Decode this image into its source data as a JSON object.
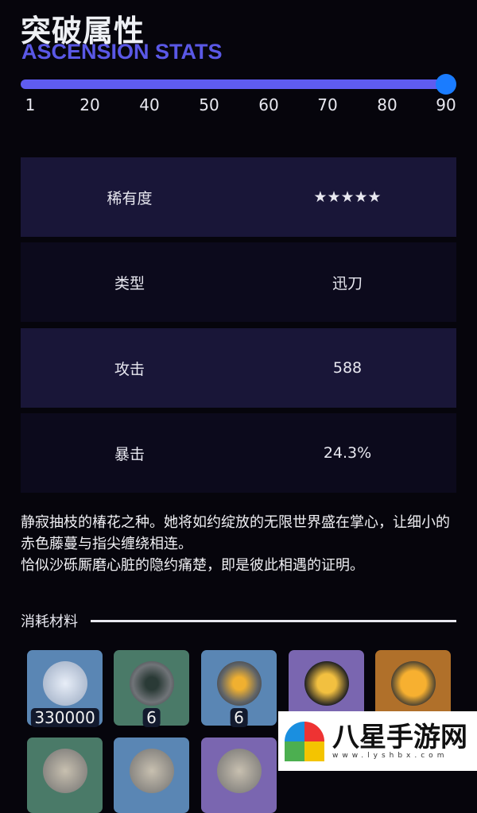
{
  "header": {
    "title": "突破属性",
    "subtitle": "ASCENSION STATS"
  },
  "level_slider": {
    "ticks": [
      "1",
      "20",
      "40",
      "50",
      "60",
      "70",
      "80",
      "90"
    ],
    "value": 90,
    "min": 1,
    "max": 90,
    "accent": "#5f5cf0",
    "thumb_color": "#1a7cff"
  },
  "stats": [
    {
      "label": "稀有度",
      "value": "★★★★★"
    },
    {
      "label": "类型",
      "value": "迅刀"
    },
    {
      "label": "攻击",
      "value": "588"
    },
    {
      "label": "暴击",
      "value": "24.3%"
    }
  ],
  "description": [
    "静寂抽枝的椿花之种。她将如约绽放的无限世界盛在掌心，让细小的赤色藤蔓与指尖缠绕相连。",
    "恰似沙砾厮磨心脏的隐约痛楚，即是彼此相遇的证明。"
  ],
  "materials": {
    "heading": "消耗材料",
    "items": [
      {
        "count": "330000",
        "bg": "#5a86b4",
        "icon": "coin-icon"
      },
      {
        "count": "6",
        "bg": "#4a7a68",
        "icon": "ore-dark-icon"
      },
      {
        "count": "6",
        "bg": "#5a86b4",
        "icon": "ore-gold-icon"
      },
      {
        "count": "",
        "bg": "#7a66b0",
        "icon": "orb-gold-icon"
      },
      {
        "count": "",
        "bg": "#b0702a",
        "icon": "orb-gold-large-icon"
      },
      {
        "count": "",
        "bg": "#4a7a68",
        "icon": "material-icon"
      },
      {
        "count": "",
        "bg": "#5a86b4",
        "icon": "material-icon"
      },
      {
        "count": "",
        "bg": "#7a66b0",
        "icon": "material-icon"
      }
    ]
  },
  "watermark": {
    "name": "八星手游网",
    "url": "www.lyshbx.com"
  }
}
